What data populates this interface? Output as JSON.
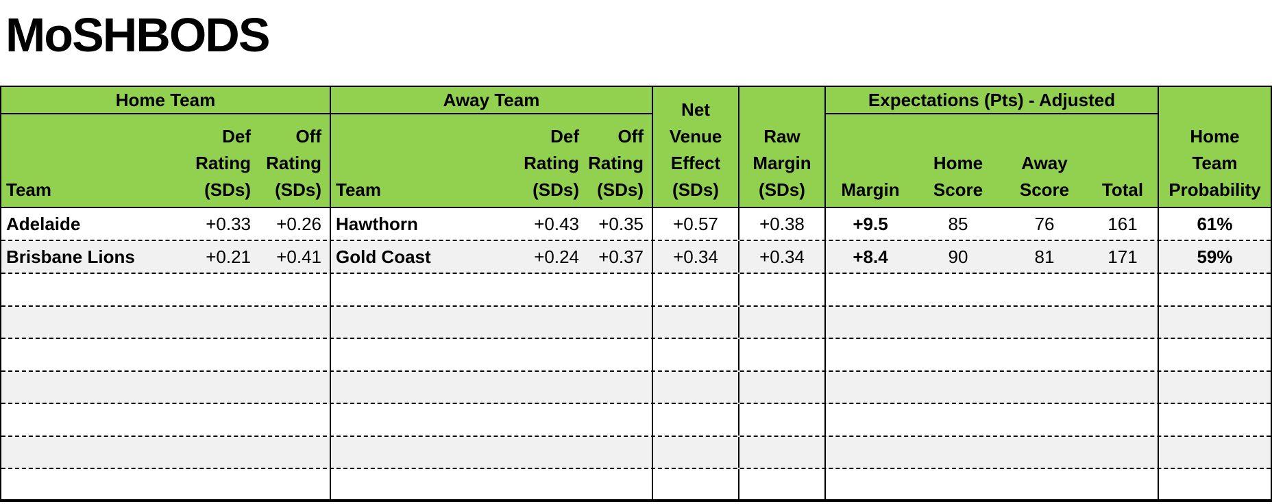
{
  "title": "MoSHBODS",
  "colors": {
    "header_green": "#92D050",
    "alt_row_gray": "#F1F1F1",
    "border_black": "#000000"
  },
  "header": {
    "home_section": "Home Team",
    "away_section": "Away Team",
    "expectations_section": "Expectations (Pts) - Adjusted",
    "team": "Team",
    "def_rating": "Def\nRating\n(SDs)",
    "off_rating": "Off\nRating\n(SDs)",
    "net_venue": "Net\nVenue\nEffect\n(SDs)",
    "raw_margin": "Raw\nMargin\n(SDs)",
    "margin": "Margin",
    "home_score": "Home\nScore",
    "away_score": "Away\nScore",
    "total": "Total",
    "probability": "Home\nTeam\nProbability"
  },
  "rows": [
    {
      "home_team": "Adelaide",
      "home_def": "+0.33",
      "home_off": "+0.26",
      "away_team": "Hawthorn",
      "away_def": "+0.43",
      "away_off": "+0.35",
      "net_venue": "+0.57",
      "raw_margin": "+0.38",
      "margin": "+9.5",
      "home_score": "85",
      "away_score": "76",
      "total": "161",
      "probability": "61%"
    },
    {
      "home_team": "Brisbane Lions",
      "home_def": "+0.21",
      "home_off": "+0.41",
      "away_team": "Gold Coast",
      "away_def": "+0.24",
      "away_off": "+0.37",
      "net_venue": "+0.34",
      "raw_margin": "+0.34",
      "margin": "+8.4",
      "home_score": "90",
      "away_score": "81",
      "total": "171",
      "probability": "59%"
    }
  ],
  "empty_row_count": 7
}
